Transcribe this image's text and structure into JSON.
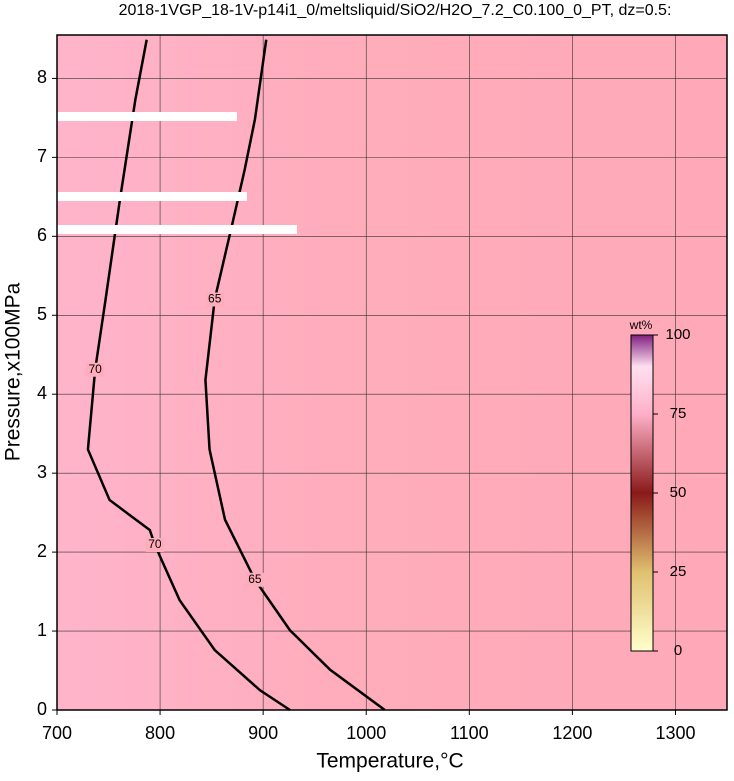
{
  "chart_data": {
    "type": "contour",
    "title": "2018-1VGP_18-1V-p14i1_0/meltsliquid/SiO2/H2O_7.2_C0.100_0_PT, dz=0.5:",
    "x_label": "Temperature,°C",
    "y_label": "Pressure,x100MPa",
    "xlim": [
      700,
      1350
    ],
    "ylim": [
      0,
      8.55
    ],
    "xticks": [
      700,
      800,
      900,
      1000,
      1100,
      1200,
      1300
    ],
    "yticks": [
      0,
      1,
      2,
      3,
      4,
      5,
      6,
      7,
      8
    ],
    "grid": true,
    "contours": [
      {
        "level": 70,
        "x": [
          787,
          776,
          761,
          747,
          737,
          730,
          751,
          790,
          795,
          819,
          853,
          897,
          926
        ],
        "y": [
          8.49,
          7.73,
          6.46,
          5.19,
          4.31,
          3.3,
          2.66,
          2.28,
          2.09,
          1.39,
          0.76,
          0.25,
          0
        ]
      },
      {
        "level": 65,
        "x": [
          903,
          892,
          882,
          871,
          853,
          844,
          848,
          863,
          892,
          926,
          965,
          1018
        ],
        "y": [
          8.49,
          7.48,
          6.84,
          6.21,
          5.2,
          4.18,
          3.3,
          2.41,
          1.65,
          1.01,
          0.51,
          0
        ]
      }
    ],
    "colorbar": {
      "label": "wt%",
      "lim": [
        0,
        100
      ],
      "ticks": [
        0,
        25,
        50,
        75,
        100
      ]
    }
  }
}
